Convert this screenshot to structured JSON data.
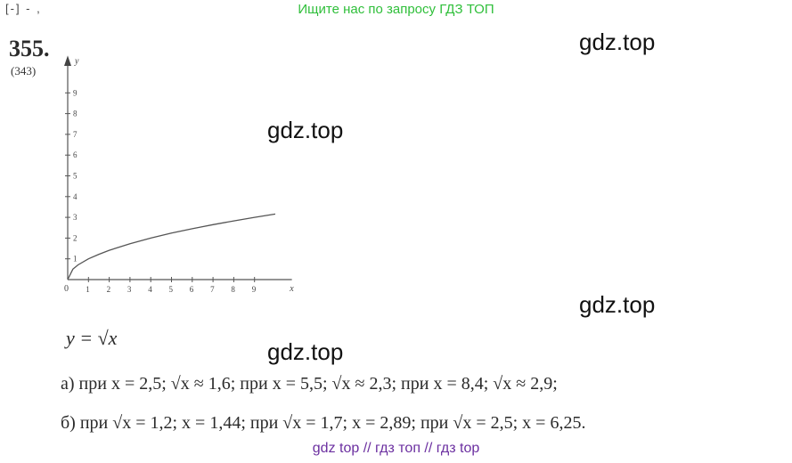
{
  "header": {
    "banner": "Ищите нас по запросу ГДЗ ТОП",
    "corner_mark": "[-]  -  ,"
  },
  "watermarks": [
    "gdz.top",
    "gdz.top",
    "gdz.top",
    "gdz.top"
  ],
  "problem": {
    "number": "355.",
    "alt_number": "(343)"
  },
  "chart_data": {
    "type": "line",
    "xlabel": "x",
    "ylabel": "y",
    "xlim": [
      0,
      10
    ],
    "ylim": [
      0,
      10
    ],
    "x_ticks": [
      "1",
      "2",
      "3",
      "4",
      "5",
      "6",
      "7",
      "8",
      "9"
    ],
    "y_ticks": [
      "1",
      "2",
      "3",
      "4",
      "5",
      "6",
      "7",
      "8",
      "9"
    ],
    "origin_label": "0",
    "series": [
      {
        "x": [
          0,
          0.25,
          0.5,
          1,
          1.5,
          2,
          3,
          4,
          5,
          6,
          7,
          8,
          9,
          10
        ],
        "y": [
          0,
          0.5,
          0.71,
          1,
          1.22,
          1.41,
          1.73,
          2,
          2.24,
          2.45,
          2.65,
          2.83,
          3,
          3.16
        ]
      }
    ]
  },
  "formula": "y = √x",
  "answers": {
    "a": "а) при x = 2,5;  √x ≈ 1,6;  при x = 5,5;  √x ≈ 2,3;  при x = 8,4;  √x ≈ 2,9;",
    "b": "б) при  √x = 1,2;  x = 1,44;  при  √x = 1,7;  x = 2,89;  при  √x = 2,5;  x = 6,25."
  },
  "footer": "gdz top  //  гдз топ  //  гдз top"
}
